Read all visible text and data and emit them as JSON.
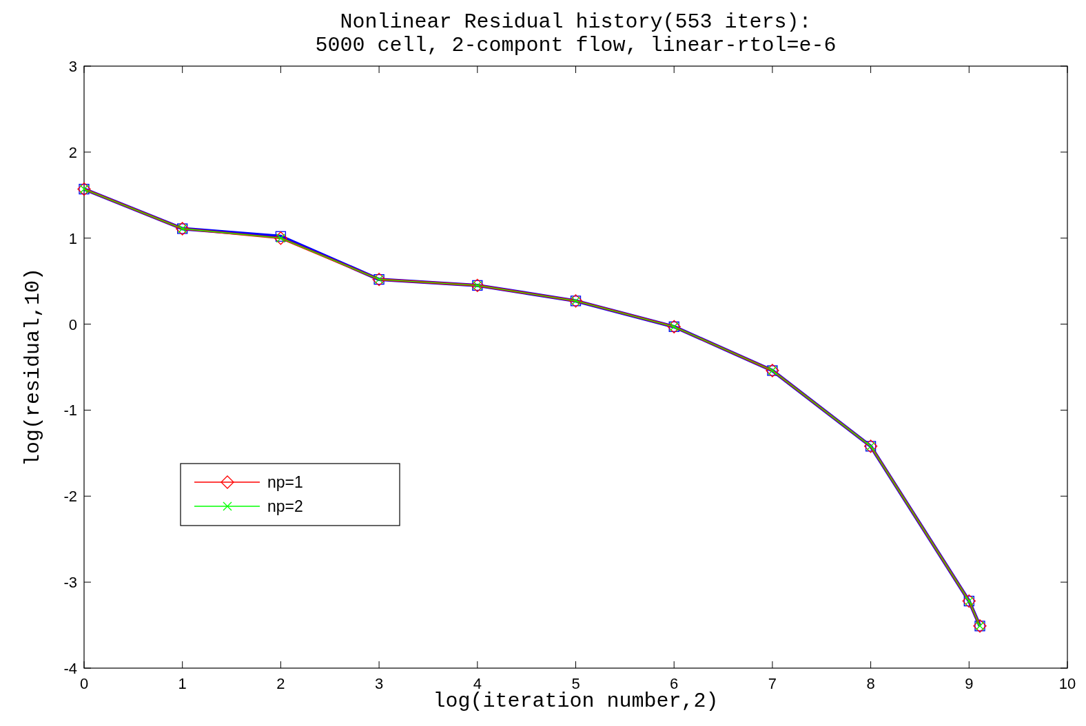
{
  "chart_data": {
    "type": "line",
    "title": "Nonlinear Residual history(553 iters):\n5000 cell, 2-compont flow, linear-rtol=e-6",
    "xlabel": "log(iteration number,2)",
    "ylabel": "log(residual,10)",
    "x": [
      0,
      1,
      2,
      3,
      4,
      5,
      6,
      7,
      8,
      9,
      9.11
    ],
    "series": [
      {
        "color": "#0000ff",
        "marker": "square",
        "values": [
          1.57,
          1.11,
          1.02,
          0.52,
          0.45,
          0.27,
          -0.03,
          -0.54,
          -1.42,
          -3.22,
          -3.51
        ]
      },
      {
        "name": "np=1",
        "color": "#ff0000",
        "marker": "diamond",
        "values": [
          1.57,
          1.11,
          1.0,
          0.52,
          0.45,
          0.27,
          -0.03,
          -0.54,
          -1.42,
          -3.22,
          -3.51
        ]
      },
      {
        "name": "np=2",
        "color": "#00ff00",
        "marker": "cross",
        "values": [
          1.57,
          1.11,
          1.0,
          0.52,
          0.45,
          0.27,
          -0.03,
          -0.54,
          -1.42,
          -3.22,
          -3.51
        ]
      }
    ],
    "xlim": [
      0,
      10
    ],
    "xticks": [
      0,
      1,
      2,
      3,
      4,
      5,
      6,
      7,
      8,
      9,
      10
    ],
    "ylim": [
      -4,
      3
    ],
    "yticks": [
      -4,
      -3,
      -2,
      -1,
      0,
      1,
      2,
      3
    ],
    "grid": false,
    "legend": "left",
    "line_style": "solid"
  }
}
